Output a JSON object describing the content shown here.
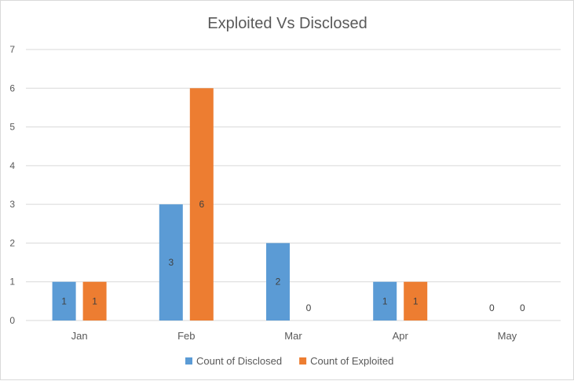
{
  "chart_data": {
    "type": "bar",
    "title": "Exploited Vs Disclosed",
    "categories": [
      "Jan",
      "Feb",
      "Mar",
      "Apr",
      "May"
    ],
    "series": [
      {
        "name": "Count of Disclosed",
        "values": [
          1,
          3,
          2,
          1,
          0
        ],
        "color": "#5b9bd5"
      },
      {
        "name": "Count of Exploited",
        "values": [
          1,
          6,
          0,
          1,
          0
        ],
        "color": "#ed7d31"
      }
    ],
    "ylim": [
      0,
      7
    ],
    "yticks": [
      0,
      1,
      2,
      3,
      4,
      5,
      6,
      7
    ],
    "grid": true,
    "data_labels": true,
    "legend_position": "bottom"
  }
}
